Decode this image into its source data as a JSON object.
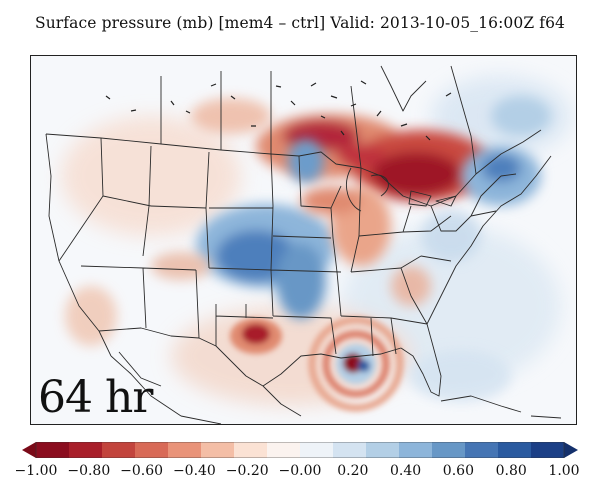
{
  "title": "Surface pressure (mb) [mem4 – ctrl] Valid: 2013-10-05_16:00Z f64",
  "lead_time": "64 hr",
  "colorbar": {
    "ticks": [
      "−1.00",
      "−0.80",
      "−0.60",
      "−0.40",
      "−0.20",
      "−0.00",
      "0.20",
      "0.40",
      "0.60",
      "0.80",
      "1.00"
    ],
    "colors": [
      "#8b0d1f",
      "#a81f2a",
      "#c2443d",
      "#d86a57",
      "#e99379",
      "#f4bea6",
      "#fbe2d4",
      "#fbf3ef",
      "#eef3f8",
      "#d4e3f1",
      "#b3cfe6",
      "#8db5da",
      "#6797c6",
      "#4575b4",
      "#2a5aa0",
      "#1b3f86"
    ],
    "min_color": "#7a0a18",
    "max_color": "#14306c"
  },
  "colors": {
    "land_bg": "#f6f8fb",
    "boundary": "#2b2b2b"
  }
}
